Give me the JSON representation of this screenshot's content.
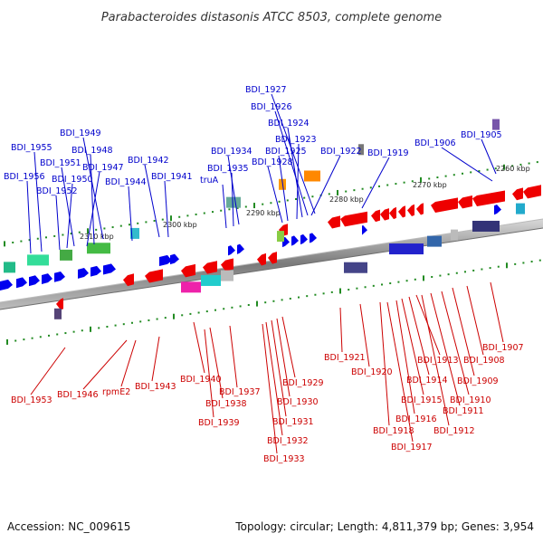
{
  "title": "Parabacteroides distasonis ATCC 8503, complete genome",
  "footer": {
    "accession": "Accession: NC_009615",
    "summary": "Topology: circular; Length: 4,811,379 bp; Genes: 3,954"
  },
  "colors": {
    "forward_label": "#0000cc",
    "reverse_label": "#cc0000",
    "forward_gene": "#0000ee",
    "reverse_gene": "#ee0000",
    "backbone": "#888888",
    "tick": "#228b22"
  },
  "ticks": [
    {
      "label": "2310 kbp"
    },
    {
      "label": "2300 kbp"
    },
    {
      "label": "2290 kbp"
    },
    {
      "label": "2280 kbp"
    },
    {
      "label": "2270 kbp"
    },
    {
      "label": "2260 kbp"
    }
  ],
  "forward_labels": [
    "BDI_1927",
    "BDI_1926",
    "BDI_1924",
    "BDI_1923",
    "BDI_1925",
    "BDI_1928",
    "BDI_1922",
    "BDI_1919",
    "BDI_1906",
    "BDI_1905",
    "BDI_1934",
    "BDI_1935",
    "truA",
    "BDI_1949",
    "BDI_1955",
    "BDI_1948",
    "BDI_1951",
    "BDI_1947",
    "BDI_1956",
    "BDI_1950",
    "BDI_1952",
    "BDI_1942",
    "BDI_1944",
    "BDI_1941"
  ],
  "reverse_labels": [
    "BDI_1953",
    "BDI_1946",
    "rpmE2",
    "BDI_1943",
    "BDI_1940",
    "BDI_1937",
    "BDI_1938",
    "BDI_1939",
    "BDI_1929",
    "BDI_1930",
    "BDI_1931",
    "BDI_1932",
    "BDI_1933",
    "BDI_1921",
    "BDI_1920",
    "BDI_1913",
    "BDI_1914",
    "BDI_1915",
    "BDI_1916",
    "BDI_1918",
    "BDI_1917",
    "BDI_1907",
    "BDI_1908",
    "BDI_1909",
    "BDI_1910",
    "BDI_1911",
    "BDI_1912"
  ]
}
